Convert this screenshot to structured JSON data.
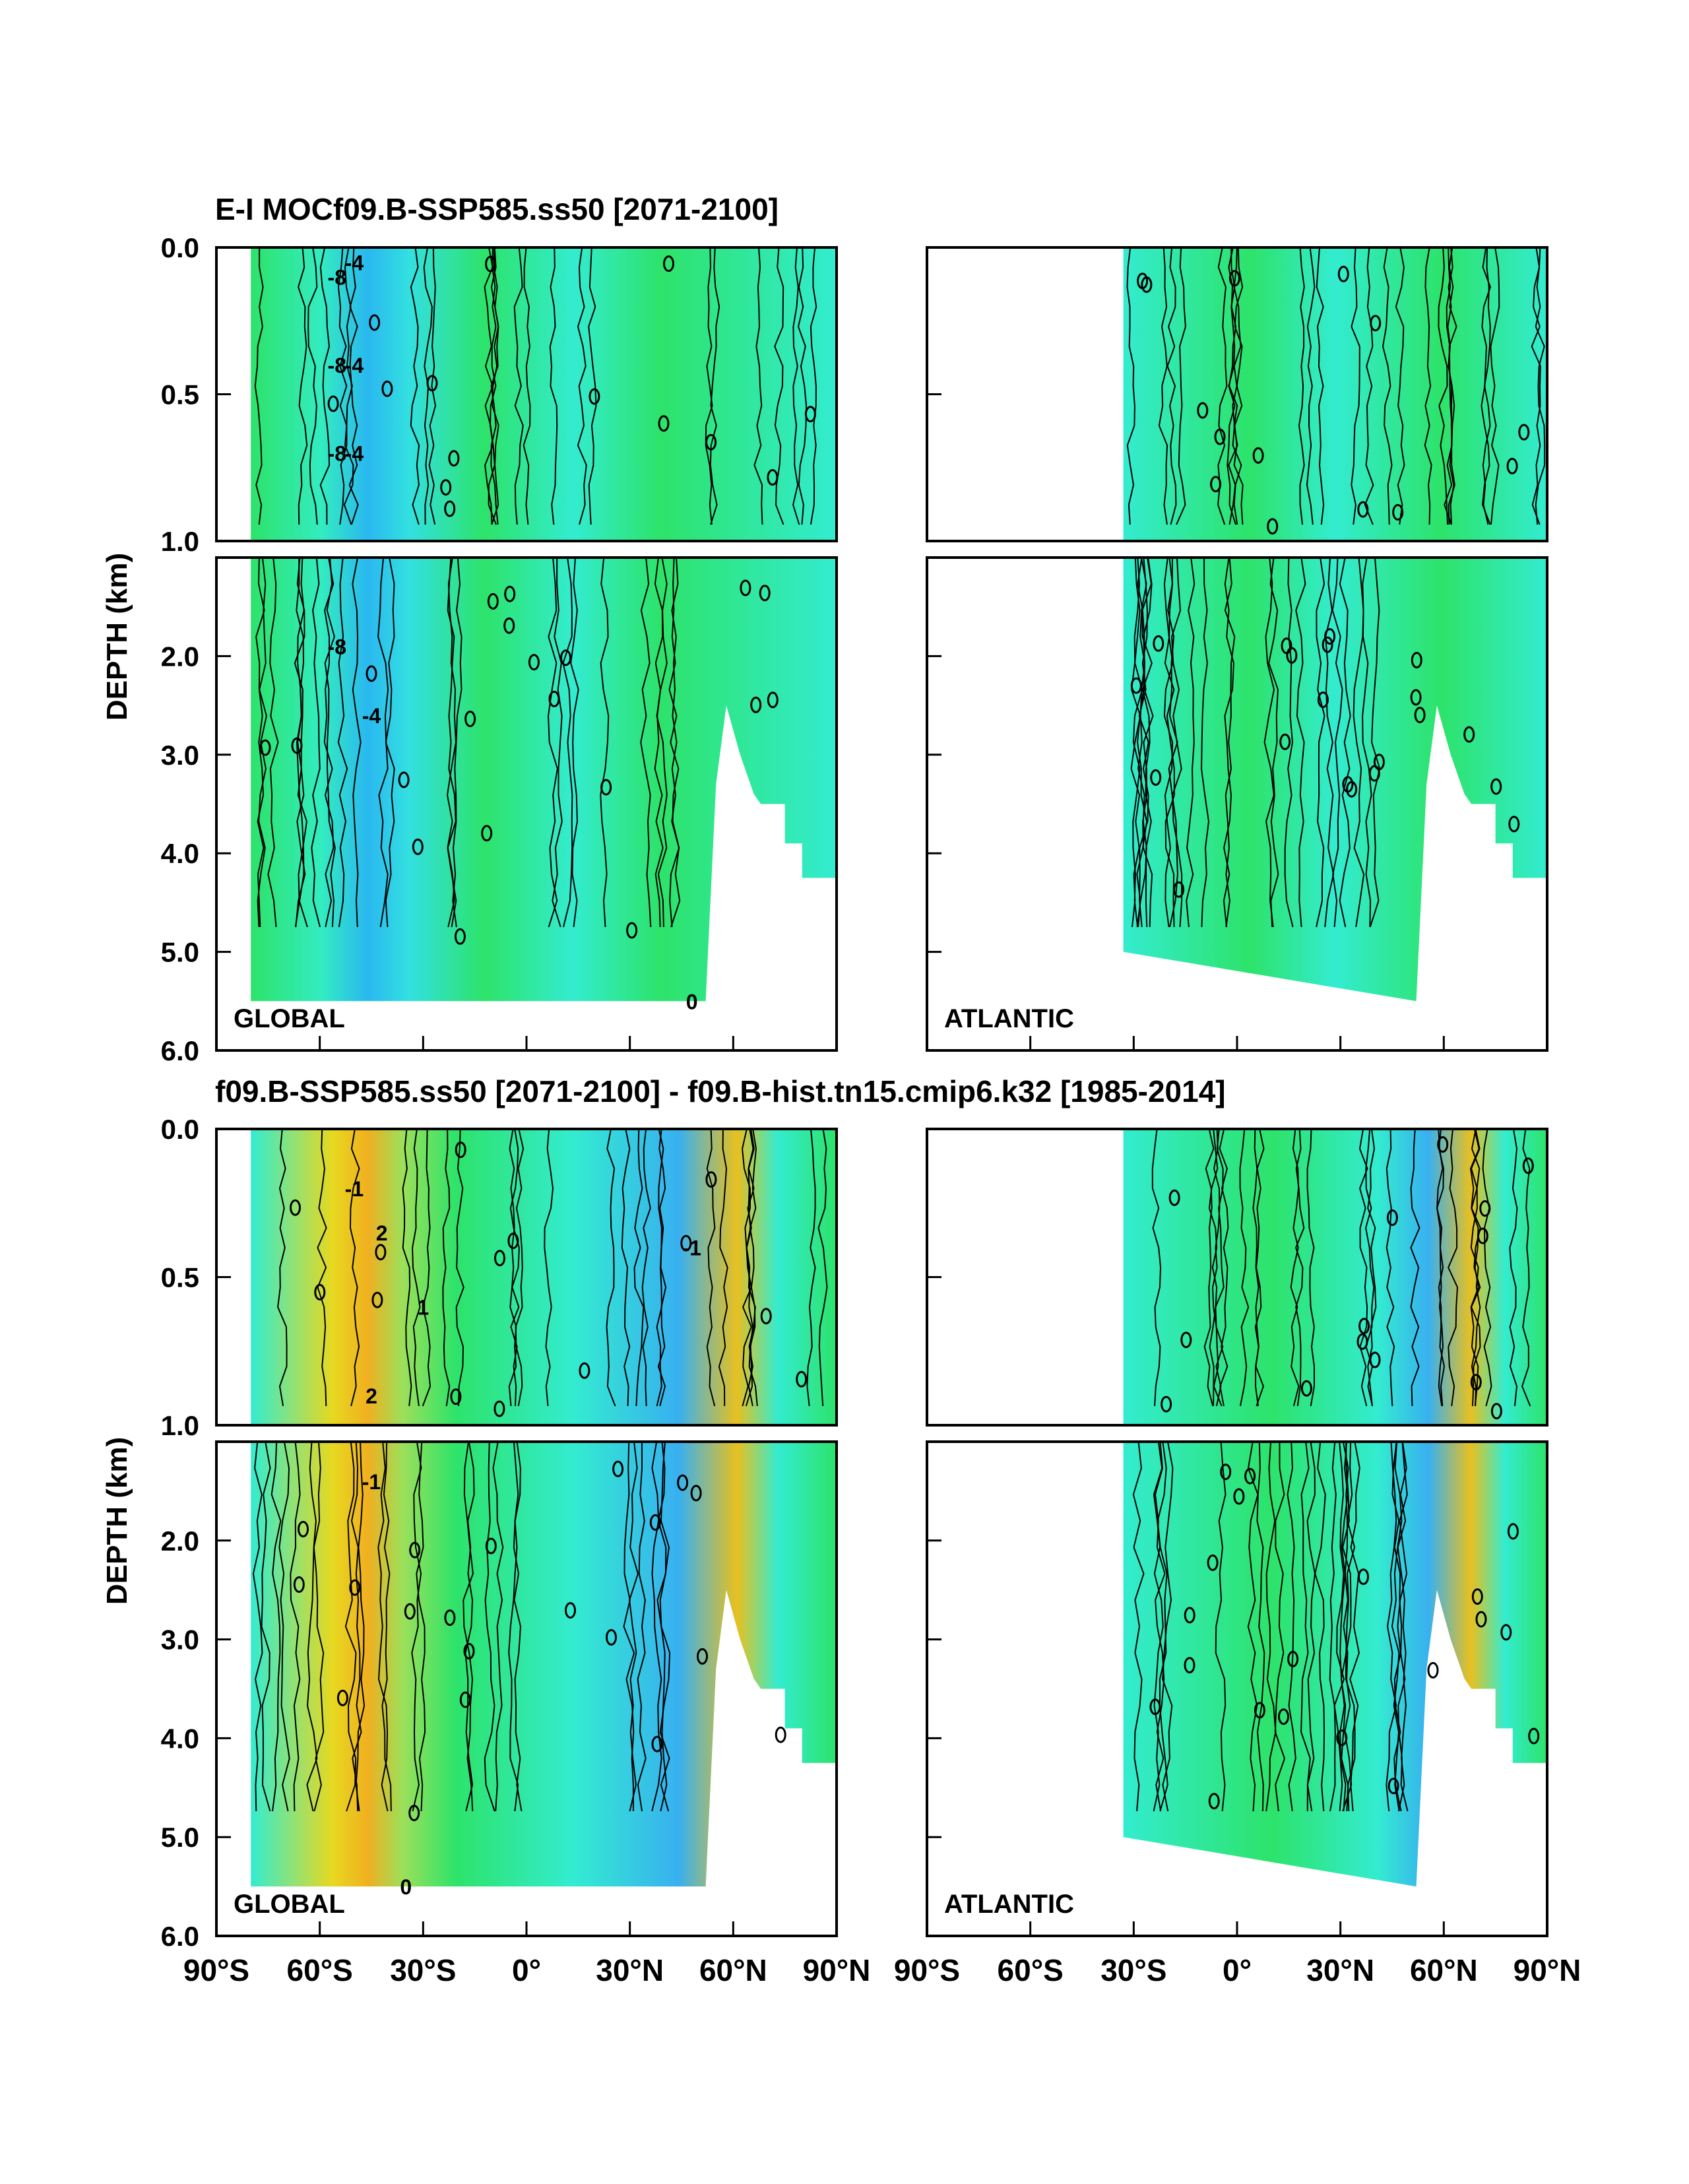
{
  "chart_data": [
    {
      "type": "contour",
      "title": "E-I MOCf09.B-SSP585.ss50 [2071-2100]",
      "ylabel": "DEPTH (km)",
      "panels": [
        {
          "region": "GLOBAL",
          "x_range": [
            -90,
            90
          ]
        },
        {
          "region": "ATLANTIC",
          "x_range": [
            -90,
            90
          ],
          "data_start_lat": -33
        }
      ],
      "upper_ylim": [
        0.0,
        1.0
      ],
      "upper_yticks": [
        "0.0",
        "0.5",
        "1.0"
      ],
      "lower_ylim": [
        1.0,
        6.0
      ],
      "lower_yticks": [
        "2.0",
        "3.0",
        "4.0",
        "5.0",
        "6.0"
      ],
      "contour_labels": [
        "-8",
        "-4",
        "-8",
        "-4",
        "-8",
        "-4",
        "-8",
        "-4",
        "0"
      ],
      "colors": {
        "strong_negative": "#2ab8f0",
        "weak_negative": "#33ecd0",
        "near_zero": "#2de36a",
        "positive": "#9be05a"
      }
    },
    {
      "type": "contour",
      "title": "f09.B-SSP585.ss50 [2071-2100] - f09.B-hist.tn15.cmip6.k32 [1985-2014]",
      "ylabel": "DEPTH (km)",
      "panels": [
        {
          "region": "GLOBAL",
          "x_range": [
            -90,
            90
          ]
        },
        {
          "region": "ATLANTIC",
          "x_range": [
            -90,
            90
          ],
          "data_start_lat": -33
        }
      ],
      "upper_ylim": [
        0.0,
        1.0
      ],
      "upper_yticks": [
        "0.0",
        "0.5",
        "1.0"
      ],
      "lower_ylim": [
        1.0,
        6.0
      ],
      "lower_yticks": [
        "2.0",
        "3.0",
        "4.0",
        "5.0",
        "6.0"
      ],
      "contour_labels": [
        "2",
        "-1",
        "2",
        "1",
        "-1",
        "-1",
        "0"
      ],
      "colors": {
        "negative": "#38e0e0",
        "near_zero": "#2de36a",
        "positive": "#e8e020",
        "strong_positive": "#f0b020"
      }
    }
  ],
  "xticks": [
    "90°S",
    "60°S",
    "30°S",
    "0°",
    "30°N",
    "60°N",
    "90°N"
  ]
}
